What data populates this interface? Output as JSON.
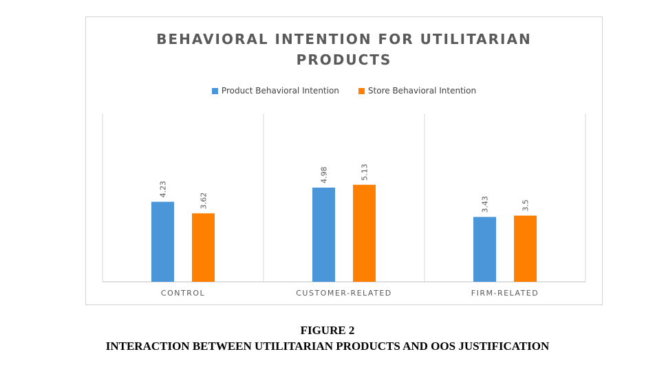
{
  "chart_data": {
    "type": "bar",
    "title_line1": "BEHAVIORAL INTENTION FOR UTILITARIAN",
    "title_line2": "PRODUCTS",
    "categories": [
      "CONTROL",
      "CUSTOMER-RELATED",
      "FIRM-RELATED"
    ],
    "series": [
      {
        "name": "Product Behavioral Intention",
        "color": "#4A96D9",
        "values": [
          4.23,
          4.98,
          3.43
        ],
        "labels": [
          "4.23",
          "4.98",
          "3.43"
        ]
      },
      {
        "name": "Store Behavioral Intention",
        "color": "#FF7F00",
        "values": [
          3.62,
          5.13,
          3.5
        ],
        "labels": [
          "3.62",
          "5.13",
          "3.5"
        ]
      }
    ],
    "ylim": [
      0,
      8.9
    ],
    "legend_position": "top",
    "grid": "vertical separators between categories"
  },
  "figure": {
    "number": "FIGURE 2",
    "caption": "INTERACTION BETWEEN UTILITARIAN PRODUCTS AND OOS JUSTIFICATION"
  }
}
